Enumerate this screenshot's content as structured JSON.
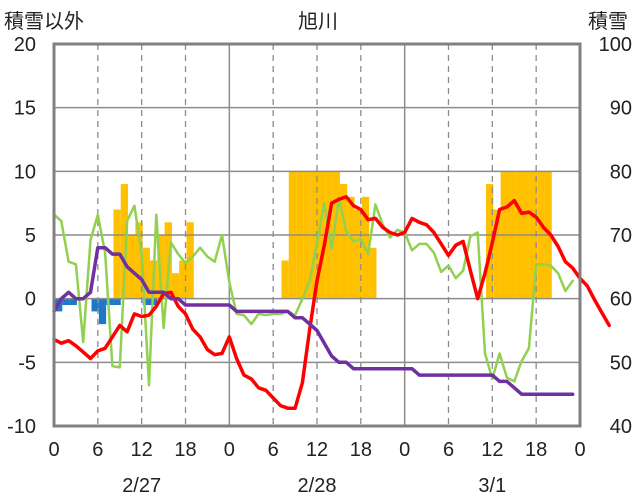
{
  "chart_data": {
    "type": "line",
    "title": "旭川",
    "ylabel_left": "積雪以外",
    "ylabel_right": "積雪",
    "ylim_left": [
      -10,
      20
    ],
    "yticks_left": [
      -10,
      -5,
      0,
      5,
      10,
      15,
      20
    ],
    "ylim_right": [
      40,
      100
    ],
    "yticks_right": [
      40,
      50,
      60,
      70,
      80,
      90,
      100
    ],
    "xlim": [
      0,
      71
    ],
    "xtick_values": [
      0,
      6,
      12,
      18,
      24,
      30,
      36,
      42,
      48,
      54,
      60,
      66,
      72
    ],
    "xtick_labels": [
      "0",
      "6",
      "12",
      "18",
      "0",
      "6",
      "12",
      "18",
      "0",
      "6",
      "12",
      "18",
      "0"
    ],
    "day_labels": [
      {
        "x": 12,
        "label": "2/27"
      },
      {
        "x": 36,
        "label": "2/28"
      },
      {
        "x": 60,
        "label": "3/1"
      }
    ],
    "grid": "dashed vertical lines at 6-hour intervals; solid horizontal lines every 5 units",
    "colors": {
      "precip_bars": "#ffc000",
      "negative_bars": "#1f77c8",
      "temperature": "#ff0000",
      "sunshine_like": "#92d050",
      "snow_depth": "#7030a0"
    },
    "bar_values": [
      0,
      0,
      0,
      0,
      0,
      0,
      0,
      0,
      7,
      9,
      5,
      6,
      4,
      3,
      5,
      6,
      2,
      3,
      6,
      0,
      0,
      0,
      0,
      0,
      0,
      0,
      0,
      0,
      0,
      0,
      0,
      3,
      10,
      10,
      10,
      10,
      10,
      10,
      10,
      9,
      8,
      7,
      8,
      4,
      0,
      0,
      0,
      0,
      0,
      0,
      0,
      0,
      0,
      0,
      0,
      0,
      0,
      0,
      0,
      9,
      7,
      10,
      10,
      10,
      10,
      10,
      10,
      10,
      0,
      0,
      0,
      0
    ],
    "negative_bar_values": [
      -1,
      -0.5,
      -0.5,
      0,
      0,
      -1,
      -2,
      -0.5,
      -0.5,
      0,
      0,
      0,
      -0.5,
      -0.5,
      0,
      0,
      0,
      0,
      0,
      0,
      0,
      0,
      0,
      0,
      0,
      0,
      0,
      0,
      0,
      0,
      0,
      0,
      0,
      0,
      0,
      0,
      0,
      0,
      0,
      0,
      0,
      0,
      0,
      0,
      0,
      0,
      0,
      0,
      0,
      0,
      0,
      0,
      0,
      0,
      0,
      0,
      0,
      0,
      0,
      0,
      0,
      0,
      0,
      0,
      0,
      0,
      0,
      0,
      0,
      0,
      0,
      0
    ],
    "series": [
      {
        "axis": "left",
        "color": "#ff0000",
        "values": [
          -3.2,
          -3.5,
          -3.3,
          -3.7,
          -4.2,
          -4.7,
          -4.1,
          -3.9,
          -3.0,
          -2.1,
          -2.6,
          -1.2,
          -1.4,
          -1.3,
          -0.6,
          0.4,
          0.5,
          -0.6,
          -1.2,
          -2.4,
          -3.0,
          -4.0,
          -4.4,
          -4.3,
          -3.0,
          -4.7,
          -6.0,
          -6.3,
          -7.0,
          -7.2,
          -7.8,
          -8.4,
          -8.6,
          -8.6,
          -6.6,
          -2.4,
          1.4,
          4.2,
          7.5,
          7.8,
          8.0,
          7.3,
          7.0,
          6.2,
          6.3,
          5.6,
          5.2,
          5.0,
          5.2,
          6.3,
          6.0,
          5.8,
          5.2,
          4.3,
          3.4,
          4.2,
          4.5,
          2.2,
          0.0,
          2.0,
          4.4,
          7.0,
          7.2,
          7.7,
          6.7,
          6.8,
          6.4,
          5.6,
          5.0,
          4.1,
          2.9,
          2.4,
          1.6,
          1.0,
          -0.1,
          -1.1,
          -2.1
        ]
      },
      {
        "axis": "left",
        "color": "#92d050",
        "values": [
          6.6,
          6.1,
          2.9,
          2.7,
          -3.4,
          4.6,
          6.6,
          3.6,
          -5.3,
          -5.4,
          6.1,
          7.3,
          3.5,
          -6.8,
          6.6,
          -2.3,
          4.4,
          3.5,
          2.8,
          3.3,
          4.0,
          3.3,
          2.9,
          5.0,
          1.3,
          -1.2,
          -1.3,
          -2.0,
          -1.2,
          -1.3,
          -1.2,
          -1.2,
          -1.0,
          -1.3,
          0.0,
          1.4,
          4.4,
          7.5,
          3.9,
          7.9,
          5.3,
          4.5,
          4.7,
          3.5,
          7.4,
          5.8,
          4.8,
          5.4,
          5.2,
          3.8,
          4.3,
          4.3,
          3.6,
          2.1,
          2.6,
          1.6,
          2.2,
          4.9,
          5.2,
          -4.3,
          -6.3,
          -4.3,
          -6.2,
          -6.5,
          -4.9,
          -3.9,
          2.7,
          2.7,
          2.6,
          2.0,
          0.6,
          1.4
        ]
      },
      {
        "axis": "right",
        "color": "#7030a0",
        "values": [
          58,
          60,
          61,
          60,
          60,
          61,
          68,
          68,
          67,
          67,
          65,
          64,
          63,
          61,
          61,
          61,
          60,
          60,
          59,
          59,
          59,
          59,
          59,
          59,
          59,
          58,
          58,
          58,
          58,
          58,
          58,
          58,
          58,
          57,
          57,
          56,
          55,
          53,
          51,
          50,
          50,
          49,
          49,
          49,
          49,
          49,
          49,
          49,
          49,
          49,
          48,
          48,
          48,
          48,
          48,
          48,
          48,
          48,
          48,
          48,
          48,
          47,
          47,
          46,
          45,
          45,
          45,
          45,
          45,
          45,
          45,
          45
        ]
      }
    ]
  }
}
